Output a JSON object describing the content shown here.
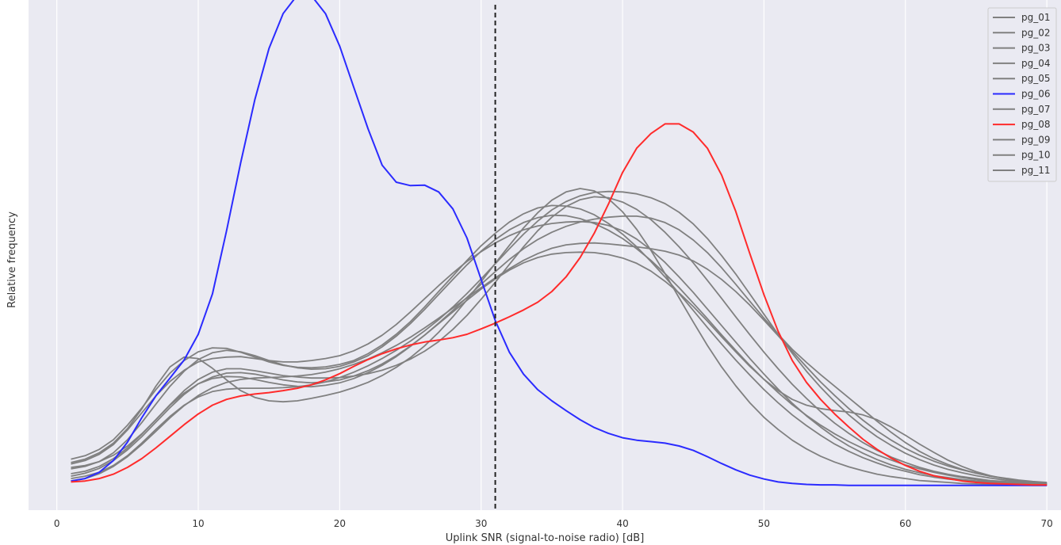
{
  "chart_data": {
    "type": "line",
    "title": "",
    "xlabel": "Uplink SNR (signal-to-noise radio) [dB]",
    "ylabel": "Relative frequency",
    "xlim": [
      -2,
      71
    ],
    "ylim": [
      -0.005,
      0.1
    ],
    "xticks": [
      0,
      10,
      20,
      30,
      40,
      50,
      60,
      70
    ],
    "xtick_labels": [
      "0",
      "10",
      "20",
      "30",
      "40",
      "50",
      "60",
      "70"
    ],
    "y_tick_labels_shown": false,
    "grid": "vertical",
    "background": "#eaeaf2",
    "grid_color": "#ffffff",
    "threshold_line": {
      "x": 31,
      "style": "dashed",
      "color": "#222222"
    },
    "legend_position": "top-right",
    "x": [
      1,
      2,
      3,
      4,
      5,
      6,
      7,
      8,
      9,
      10,
      11,
      12,
      13,
      14,
      15,
      16,
      17,
      18,
      19,
      20,
      21,
      22,
      23,
      24,
      25,
      26,
      27,
      28,
      29,
      30,
      31,
      32,
      33,
      34,
      35,
      36,
      37,
      38,
      39,
      40,
      41,
      42,
      43,
      44,
      45,
      46,
      47,
      48,
      49,
      50,
      51,
      52,
      53,
      54,
      55,
      56,
      57,
      58,
      59,
      60,
      61,
      62,
      63,
      64,
      65,
      66,
      67,
      68,
      69,
      70
    ],
    "series": [
      {
        "name": "pg_01",
        "color": "#808080",
        "values": [
          0.0045,
          0.0052,
          0.0065,
          0.0085,
          0.0115,
          0.015,
          0.0185,
          0.0215,
          0.0238,
          0.0255,
          0.0262,
          0.0265,
          0.0266,
          0.0262,
          0.0258,
          0.0255,
          0.0255,
          0.0258,
          0.0262,
          0.0268,
          0.0278,
          0.0292,
          0.031,
          0.0332,
          0.0358,
          0.0385,
          0.0412,
          0.0438,
          0.0462,
          0.0482,
          0.05,
          0.0515,
          0.0527,
          0.0535,
          0.054,
          0.0543,
          0.0544,
          0.0542,
          0.0536,
          0.0525,
          0.0508,
          0.0486,
          0.046,
          0.043,
          0.0398,
          0.0364,
          0.033,
          0.0296,
          0.0262,
          0.023,
          0.0199,
          0.017,
          0.0144,
          0.0121,
          0.01,
          0.0082,
          0.0067,
          0.0054,
          0.0043,
          0.0034,
          0.0027,
          0.0021,
          0.0017,
          0.0013,
          0.001,
          0.0008,
          0.0006,
          0.0005,
          0.0004,
          0.0003
        ]
      },
      {
        "name": "pg_02",
        "color": "#808080",
        "values": [
          0.0055,
          0.0062,
          0.0075,
          0.0095,
          0.0125,
          0.016,
          0.0198,
          0.0232,
          0.0258,
          0.0276,
          0.0284,
          0.0283,
          0.0275,
          0.0265,
          0.0255,
          0.0248,
          0.0244,
          0.0243,
          0.0245,
          0.025,
          0.0258,
          0.0272,
          0.029,
          0.0312,
          0.0338,
          0.0368,
          0.04,
          0.0432,
          0.0464,
          0.0494,
          0.052,
          0.0543,
          0.056,
          0.0572,
          0.0577,
          0.0576,
          0.057,
          0.0558,
          0.054,
          0.0518,
          0.0492,
          0.0462,
          0.043,
          0.0396,
          0.0361,
          0.0326,
          0.0292,
          0.0259,
          0.0228,
          0.0198,
          0.0171,
          0.0146,
          0.0124,
          0.0104,
          0.0086,
          0.0071,
          0.0058,
          0.0047,
          0.0037,
          0.003,
          0.0023,
          0.0018,
          0.0014,
          0.0011,
          0.0008,
          0.0006,
          0.0005,
          0.0004,
          0.0003,
          0.0002
        ]
      },
      {
        "name": "pg_03",
        "color": "#808080",
        "values": [
          0.0035,
          0.004,
          0.005,
          0.0068,
          0.0095,
          0.013,
          0.0168,
          0.0205,
          0.0236,
          0.026,
          0.0274,
          0.0279,
          0.0276,
          0.0268,
          0.0258,
          0.0249,
          0.0243,
          0.024,
          0.0241,
          0.0246,
          0.0255,
          0.0268,
          0.0286,
          0.0308,
          0.0334,
          0.0363,
          0.0394,
          0.0425,
          0.0455,
          0.0483,
          0.0507,
          0.0527,
          0.0542,
          0.0552,
          0.0557,
          0.0556,
          0.055,
          0.054,
          0.0526,
          0.0509,
          0.0488,
          0.0464,
          0.0437,
          0.0408,
          0.0376,
          0.0344,
          0.0311,
          0.0279,
          0.0248,
          0.0219,
          0.0192,
          0.0167,
          0.0145,
          0.0125,
          0.0107,
          0.0091,
          0.0077,
          0.0064,
          0.0053,
          0.0043,
          0.0035,
          0.0028,
          0.0022,
          0.0017,
          0.0013,
          0.001,
          0.0008,
          0.0006,
          0.0005,
          0.0004
        ]
      },
      {
        "name": "pg_04",
        "color": "#808080",
        "values": [
          0.001,
          0.0015,
          0.0025,
          0.004,
          0.006,
          0.0085,
          0.0112,
          0.014,
          0.0165,
          0.0186,
          0.0202,
          0.0213,
          0.0219,
          0.0222,
          0.0223,
          0.0224,
          0.0226,
          0.0229,
          0.0234,
          0.0241,
          0.025,
          0.0261,
          0.0274,
          0.0289,
          0.0306,
          0.0325,
          0.0345,
          0.0366,
          0.0387,
          0.0408,
          0.0428,
          0.0447,
          0.0464,
          0.0478,
          0.0489,
          0.0496,
          0.0499,
          0.05,
          0.0498,
          0.0495,
          0.0492,
          0.0488,
          0.0483,
          0.0475,
          0.0463,
          0.0446,
          0.0425,
          0.04,
          0.0372,
          0.0341,
          0.0309,
          0.0277,
          0.0245,
          0.0214,
          0.0186,
          0.0159,
          0.0135,
          0.0113,
          0.0094,
          0.0077,
          0.0063,
          0.0051,
          0.0041,
          0.0033,
          0.0026,
          0.002,
          0.0016,
          0.0012,
          0.0009,
          0.0007
        ]
      },
      {
        "name": "pg_05",
        "color": "#808080",
        "values": [
          0.002,
          0.0026,
          0.0036,
          0.0052,
          0.0074,
          0.0101,
          0.0131,
          0.0161,
          0.0188,
          0.021,
          0.0224,
          0.0232,
          0.0233,
          0.023,
          0.0224,
          0.0218,
          0.0214,
          0.0212,
          0.0214,
          0.0218,
          0.0226,
          0.0237,
          0.0251,
          0.0268,
          0.0288,
          0.031,
          0.0334,
          0.0358,
          0.0382,
          0.0405,
          0.0426,
          0.0444,
          0.0459,
          0.047,
          0.0477,
          0.048,
          0.0481,
          0.048,
          0.0476,
          0.0469,
          0.0458,
          0.0442,
          0.0421,
          0.0397,
          0.0369,
          0.0339,
          0.0307,
          0.0276,
          0.0246,
          0.0219,
          0.0196,
          0.0178,
          0.0166,
          0.0159,
          0.0155,
          0.0152,
          0.0146,
          0.0136,
          0.0121,
          0.0104,
          0.0086,
          0.0069,
          0.0053,
          0.004,
          0.0029,
          0.0021,
          0.0015,
          0.001,
          0.0007,
          0.0005
        ]
      },
      {
        "name": "pg_06",
        "color": "#2b2bff",
        "values": [
          0.001,
          0.0015,
          0.0028,
          0.0052,
          0.009,
          0.014,
          0.0185,
          0.0222,
          0.0259,
          0.0312,
          0.0395,
          0.0525,
          0.0665,
          0.0795,
          0.09,
          0.0972,
          0.101,
          0.1009,
          0.0972,
          0.0905,
          0.082,
          0.0735,
          0.066,
          0.0625,
          0.0618,
          0.0619,
          0.0605,
          0.057,
          0.051,
          0.0425,
          0.034,
          0.0275,
          0.023,
          0.0198,
          0.0175,
          0.0155,
          0.0136,
          0.012,
          0.0108,
          0.0099,
          0.0094,
          0.0091,
          0.0088,
          0.0082,
          0.0073,
          0.006,
          0.0046,
          0.0033,
          0.0022,
          0.0014,
          0.0008,
          0.0005,
          0.0003,
          0.0002,
          0.0002,
          0.0001,
          0.0001,
          0.0001,
          0.0001,
          0.0001,
          0.0001,
          0.0001,
          0.0001,
          0.0001,
          0.0001,
          0.0001,
          0.0001,
          0.0001,
          0.0001,
          0.0001
        ]
      },
      {
        "name": "pg_07",
        "color": "#808080",
        "values": [
          0.0048,
          0.0055,
          0.0068,
          0.0088,
          0.0118,
          0.0158,
          0.0205,
          0.0245,
          0.0265,
          0.0262,
          0.0242,
          0.0218,
          0.0196,
          0.0182,
          0.0175,
          0.0173,
          0.0175,
          0.018,
          0.0186,
          0.0193,
          0.0202,
          0.0213,
          0.0227,
          0.0244,
          0.0264,
          0.0288,
          0.0316,
          0.0348,
          0.0383,
          0.042,
          0.0458,
          0.0495,
          0.0531,
          0.0562,
          0.0588,
          0.0605,
          0.0612,
          0.0607,
          0.0591,
          0.0564,
          0.0528,
          0.0485,
          0.0437,
          0.0387,
          0.0337,
          0.0289,
          0.0245,
          0.0206,
          0.0171,
          0.0141,
          0.0116,
          0.0094,
          0.0076,
          0.0061,
          0.0049,
          0.0039,
          0.0031,
          0.0024,
          0.0019,
          0.0015,
          0.0011,
          0.0009,
          0.0007,
          0.0005,
          0.0004,
          0.0003,
          0.0002,
          0.0002,
          0.0001,
          0.0001
        ]
      },
      {
        "name": "pg_08",
        "color": "#ff2b2b",
        "values": [
          0.0008,
          0.001,
          0.0015,
          0.0024,
          0.0038,
          0.0056,
          0.0078,
          0.0102,
          0.0126,
          0.0148,
          0.0166,
          0.0178,
          0.0185,
          0.0189,
          0.0192,
          0.0196,
          0.0201,
          0.0208,
          0.0218,
          0.0231,
          0.0246,
          0.026,
          0.0272,
          0.0282,
          0.029,
          0.0296,
          0.03,
          0.0305,
          0.0312,
          0.0323,
          0.0335,
          0.0348,
          0.0362,
          0.0378,
          0.04,
          0.043,
          0.047,
          0.052,
          0.058,
          0.0645,
          0.0695,
          0.0725,
          0.0745,
          0.0745,
          0.0728,
          0.0695,
          0.064,
          0.0565,
          0.0478,
          0.0393,
          0.0318,
          0.0258,
          0.0213,
          0.0178,
          0.0148,
          0.0121,
          0.0096,
          0.0075,
          0.0057,
          0.0042,
          0.003,
          0.0021,
          0.0015,
          0.001,
          0.0007,
          0.0005,
          0.0004,
          0.0003,
          0.0002,
          0.0002
        ]
      },
      {
        "name": "pg_09",
        "color": "#808080",
        "values": [
          0.0015,
          0.002,
          0.0028,
          0.0042,
          0.0062,
          0.0088,
          0.0116,
          0.0143,
          0.0166,
          0.0183,
          0.0194,
          0.0199,
          0.0201,
          0.0201,
          0.0201,
          0.0202,
          0.0204,
          0.0208,
          0.0214,
          0.0223,
          0.0234,
          0.0247,
          0.0262,
          0.0279,
          0.0298,
          0.0319,
          0.0342,
          0.0368,
          0.0396,
          0.0426,
          0.0457,
          0.0488,
          0.0518,
          0.0545,
          0.0568,
          0.0585,
          0.0597,
          0.0604,
          0.0606,
          0.0605,
          0.0601,
          0.0593,
          0.0581,
          0.0563,
          0.0539,
          0.0509,
          0.0474,
          0.0436,
          0.0395,
          0.0353,
          0.0312,
          0.0273,
          0.0236,
          0.0203,
          0.0173,
          0.0146,
          0.0122,
          0.0101,
          0.0083,
          0.0067,
          0.0054,
          0.0043,
          0.0034,
          0.0027,
          0.0021,
          0.0016,
          0.0012,
          0.0009,
          0.0007,
          0.0005
        ]
      },
      {
        "name": "pg_10",
        "color": "#808080",
        "values": [
          0.0038,
          0.0042,
          0.005,
          0.0063,
          0.0082,
          0.0107,
          0.0136,
          0.0167,
          0.0196,
          0.0219,
          0.0234,
          0.0241,
          0.0241,
          0.0237,
          0.0232,
          0.0227,
          0.0224,
          0.0222,
          0.0222,
          0.0223,
          0.0226,
          0.0231,
          0.0238,
          0.0248,
          0.0261,
          0.0277,
          0.0297,
          0.0322,
          0.0351,
          0.0384,
          0.0419,
          0.0456,
          0.0492,
          0.0525,
          0.0553,
          0.0575,
          0.0589,
          0.0595,
          0.0593,
          0.0584,
          0.0569,
          0.0548,
          0.0522,
          0.0492,
          0.0459,
          0.0423,
          0.0386,
          0.0348,
          0.0311,
          0.0275,
          0.0241,
          0.0209,
          0.018,
          0.0153,
          0.0129,
          0.0108,
          0.0089,
          0.0073,
          0.0059,
          0.0048,
          0.0038,
          0.003,
          0.0024,
          0.0019,
          0.0015,
          0.0011,
          0.0009,
          0.0007,
          0.0005,
          0.0004
        ]
      },
      {
        "name": "pg_11",
        "color": "#808080",
        "values": [
          0.0025,
          0.003,
          0.004,
          0.0056,
          0.0078,
          0.0106,
          0.0136,
          0.0166,
          0.0191,
          0.021,
          0.0221,
          0.0225,
          0.0224,
          0.0219,
          0.0213,
          0.0208,
          0.0205,
          0.0204,
          0.0207,
          0.0212,
          0.0221,
          0.0233,
          0.0248,
          0.0266,
          0.0287,
          0.031,
          0.0335,
          0.0361,
          0.0388,
          0.0415,
          0.0441,
          0.0466,
          0.0488,
          0.0507,
          0.0522,
          0.0534,
          0.0543,
          0.0549,
          0.0553,
          0.0555,
          0.0555,
          0.0551,
          0.0542,
          0.0527,
          0.0506,
          0.048,
          0.0449,
          0.0415,
          0.038,
          0.0345,
          0.0312,
          0.0281,
          0.0254,
          0.0229,
          0.0205,
          0.0181,
          0.0157,
          0.0133,
          0.011,
          0.0089,
          0.0071,
          0.0056,
          0.0044,
          0.0034,
          0.0026,
          0.002,
          0.0015,
          0.0011,
          0.0008,
          0.0006
        ]
      }
    ]
  }
}
